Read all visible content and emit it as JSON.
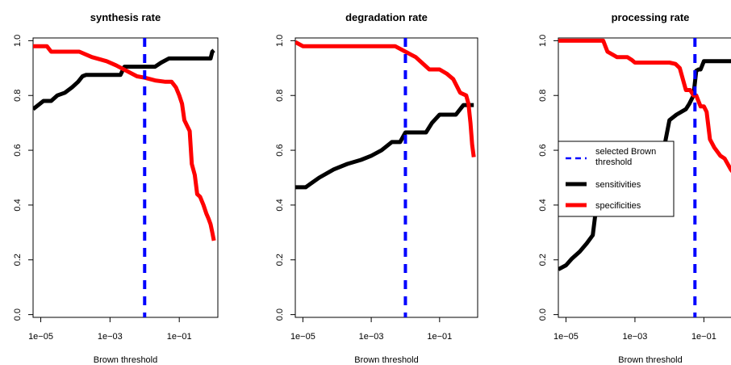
{
  "chart_data": [
    {
      "type": "line",
      "title": "synthesis rate",
      "xlabel": "Brown threshold",
      "ylabel": "",
      "xscale": "log10",
      "xlim": [
        6e-06,
        1.3
      ],
      "ylim": [
        -0.01,
        1.01
      ],
      "xticks": [
        1e-05,
        0.001,
        0.1
      ],
      "xtick_labels": [
        "1e−05",
        "1e−03",
        "1e−01"
      ],
      "yticks": [
        0.0,
        0.2,
        0.4,
        0.6,
        0.8,
        1.0
      ],
      "ytick_labels": [
        "0.0",
        "0.2",
        "0.4",
        "0.6",
        "0.8",
        "1.0"
      ],
      "threshold_x": 0.01,
      "series": [
        {
          "name": "sensitivities",
          "color": "#000000",
          "x": [
            6e-06,
            1.2e-05,
            2e-05,
            3e-05,
            5e-05,
            8e-05,
            0.00012,
            0.00016,
            0.0002,
            0.0004,
            0.0008,
            0.002,
            0.0026,
            0.004,
            0.01,
            0.02,
            0.03,
            0.05,
            0.1,
            0.2,
            0.4,
            0.8,
            0.9,
            1.0
          ],
          "y": [
            0.75,
            0.78,
            0.78,
            0.8,
            0.81,
            0.83,
            0.85,
            0.87,
            0.875,
            0.875,
            0.875,
            0.875,
            0.905,
            0.905,
            0.905,
            0.905,
            0.92,
            0.935,
            0.935,
            0.935,
            0.935,
            0.935,
            0.96,
            0.965
          ]
        },
        {
          "name": "specificities",
          "color": "#ff0000",
          "x": [
            6e-06,
            1.5e-05,
            2e-05,
            5e-05,
            0.00013,
            0.0003,
            0.0008,
            0.0015,
            0.003,
            0.006,
            0.01,
            0.02,
            0.04,
            0.06,
            0.08,
            0.1,
            0.12,
            0.14,
            0.2,
            0.23,
            0.28,
            0.33,
            0.4,
            0.5,
            0.6,
            0.7,
            0.8,
            0.9,
            1.0
          ],
          "y": [
            0.98,
            0.98,
            0.96,
            0.96,
            0.96,
            0.94,
            0.925,
            0.91,
            0.89,
            0.87,
            0.865,
            0.855,
            0.85,
            0.85,
            0.83,
            0.8,
            0.77,
            0.71,
            0.67,
            0.55,
            0.51,
            0.44,
            0.43,
            0.4,
            0.37,
            0.35,
            0.33,
            0.3,
            0.27
          ]
        }
      ]
    },
    {
      "type": "line",
      "title": "degradation rate",
      "xlabel": "Brown threshold",
      "ylabel": "",
      "xscale": "log10",
      "xlim": [
        6e-06,
        1.3
      ],
      "ylim": [
        -0.01,
        1.01
      ],
      "xticks": [
        1e-05,
        0.001,
        0.1
      ],
      "xtick_labels": [
        "1e−05",
        "1e−03",
        "1e−01"
      ],
      "yticks": [
        0.0,
        0.2,
        0.4,
        0.6,
        0.8,
        1.0
      ],
      "ytick_labels": [
        "0.0",
        "0.2",
        "0.4",
        "0.6",
        "0.8",
        "1.0"
      ],
      "threshold_x": 0.01,
      "series": [
        {
          "name": "sensitivities",
          "color": "#000000",
          "x": [
            6e-06,
            1.2e-05,
            3e-05,
            8e-05,
            0.0002,
            0.0005,
            0.001,
            0.002,
            0.004,
            0.007,
            0.01,
            0.02,
            0.04,
            0.06,
            0.1,
            0.16,
            0.3,
            0.5,
            0.8,
            1.0
          ],
          "y": [
            0.465,
            0.465,
            0.5,
            0.53,
            0.55,
            0.565,
            0.58,
            0.6,
            0.63,
            0.63,
            0.665,
            0.665,
            0.665,
            0.7,
            0.73,
            0.73,
            0.73,
            0.765,
            0.765,
            0.765
          ]
        },
        {
          "name": "specificities",
          "color": "#ff0000",
          "x": [
            6e-06,
            1e-05,
            2e-05,
            0.0001,
            0.001,
            0.005,
            0.01,
            0.02,
            0.03,
            0.05,
            0.1,
            0.16,
            0.25,
            0.4,
            0.6,
            0.7,
            0.8,
            0.9,
            1.0
          ],
          "y": [
            0.995,
            0.98,
            0.98,
            0.98,
            0.98,
            0.98,
            0.96,
            0.94,
            0.92,
            0.895,
            0.895,
            0.88,
            0.86,
            0.81,
            0.8,
            0.77,
            0.7,
            0.62,
            0.575
          ]
        }
      ]
    },
    {
      "type": "line",
      "title": "processing rate",
      "xlabel": "Brown threshold",
      "ylabel": "",
      "xscale": "log10",
      "xlim": [
        6e-06,
        1.3
      ],
      "ylim": [
        -0.01,
        1.01
      ],
      "xticks": [
        1e-05,
        0.001,
        0.1
      ],
      "xtick_labels": [
        "1e−05",
        "1e−03",
        "1e−01"
      ],
      "yticks": [
        0.0,
        0.2,
        0.4,
        0.6,
        0.8,
        1.0
      ],
      "ytick_labels": [
        "0.0",
        "0.2",
        "0.4",
        "0.6",
        "0.8",
        "1.0"
      ],
      "threshold_x": 0.055,
      "series": [
        {
          "name": "sensitivities",
          "color": "#000000",
          "x": [
            6e-06,
            1e-05,
            1.5e-05,
            2.5e-05,
            4e-05,
            6e-05,
            7e-05,
            9e-05,
            0.00013,
            0.0002,
            0.0003,
            0.0005,
            0.0008,
            0.0012,
            0.002,
            0.003,
            0.004,
            0.005,
            0.006,
            0.007,
            0.01,
            0.016,
            0.022,
            0.03,
            0.038,
            0.05,
            0.06,
            0.07,
            0.08,
            0.1,
            0.12,
            0.15,
            1.3
          ],
          "y": [
            0.165,
            0.18,
            0.205,
            0.23,
            0.26,
            0.29,
            0.36,
            0.375,
            0.395,
            0.4,
            0.42,
            0.45,
            0.48,
            0.51,
            0.545,
            0.565,
            0.58,
            0.59,
            0.6,
            0.61,
            0.71,
            0.73,
            0.74,
            0.75,
            0.77,
            0.8,
            0.89,
            0.895,
            0.895,
            0.925,
            0.925,
            0.925,
            0.925
          ]
        },
        {
          "name": "specificities",
          "color": "#ff0000",
          "x": [
            6e-06,
            1e-05,
            3e-05,
            8e-05,
            0.00012,
            0.00016,
            0.0003,
            0.0006,
            0.0008,
            0.001,
            0.002,
            0.005,
            0.01,
            0.015,
            0.02,
            0.03,
            0.04,
            0.05,
            0.06,
            0.08,
            0.1,
            0.12,
            0.15,
            0.2,
            0.3,
            0.4,
            0.6,
            0.8,
            1.0,
            1.3
          ],
          "y": [
            1.0,
            1.0,
            1.0,
            1.0,
            1.0,
            0.96,
            0.94,
            0.94,
            0.93,
            0.92,
            0.92,
            0.92,
            0.92,
            0.915,
            0.9,
            0.82,
            0.82,
            0.8,
            0.8,
            0.76,
            0.76,
            0.74,
            0.64,
            0.61,
            0.58,
            0.57,
            0.53,
            0.51,
            0.48,
            0.4
          ]
        }
      ],
      "legend": {
        "placement": "center-left",
        "entries": [
          {
            "label": "selected Brown threshold",
            "label_lines": [
              "selected Brown",
              "threshold"
            ],
            "color": "#0000ff",
            "style": "dashed"
          },
          {
            "label": "sensitivities",
            "color": "#000000",
            "style": "solid"
          },
          {
            "label": "specificities",
            "color": "#ff0000",
            "style": "solid"
          }
        ]
      }
    }
  ]
}
